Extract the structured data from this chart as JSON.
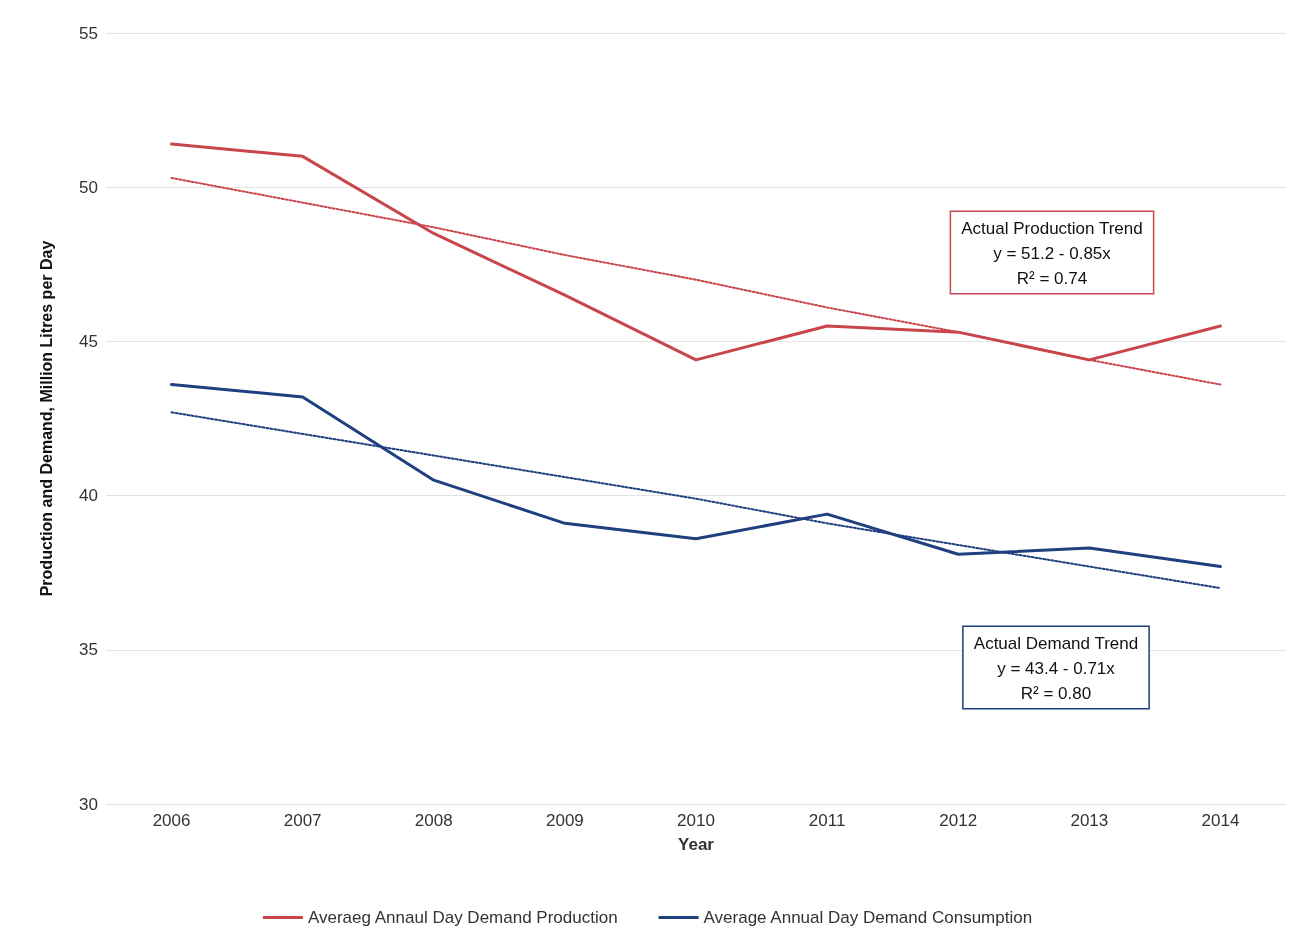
{
  "chart_data": {
    "type": "line",
    "xlabel": "Year",
    "ylabel": "Production and Demand, Million Litres per Day",
    "categories": [
      "2006",
      "2007",
      "2008",
      "2009",
      "2010",
      "2011",
      "2012",
      "2013",
      "2014"
    ],
    "series": [
      {
        "name": "Averaeg Annaul Day Demand Production",
        "color": "#c9454c",
        "values": [
          51.4,
          51.0,
          48.5,
          46.5,
          44.4,
          45.5,
          45.3,
          44.4,
          45.5
        ]
      },
      {
        "name": "Average Annual Day Demand Consumption",
        "color": "#1f3f7f",
        "values": [
          43.6,
          43.2,
          40.5,
          39.1,
          38.6,
          39.4,
          38.1,
          38.3,
          37.7
        ]
      },
      {
        "color": "#c9454c",
        "values": [
          50.3,
          49.5,
          48.7,
          47.8,
          47.0,
          46.1,
          45.3,
          44.4,
          43.6
        ],
        "line_style": "dotted"
      },
      {
        "color": "#1f3f7f",
        "values": [
          42.7,
          42.0,
          41.3,
          40.6,
          39.9,
          39.1,
          38.4,
          37.7,
          37.0
        ],
        "line_style": "dotted"
      }
    ],
    "annotations": [
      "Actual Production Trend\ny = 51.2 - 0.85x\nR² = 0.74",
      "Actual Demand Trend\ny = 43.4 - 0.71x\nR² = 0.80"
    ],
    "ylim": [
      30,
      55
    ],
    "yticks": [
      30,
      35,
      40,
      45,
      50,
      55
    ],
    "grid": "y",
    "legend": "bottom",
    "marker": "none",
    "line_style": "solid"
  }
}
